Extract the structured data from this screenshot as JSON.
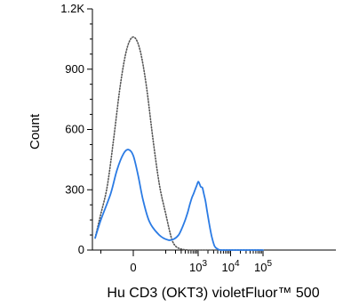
{
  "chart_data": {
    "type": "line",
    "xlabel": "Hu CD3 (OKT3) violetFluor™ 500",
    "ylabel": "Count",
    "ylim": [
      0,
      1200
    ],
    "y_ticks": [
      {
        "value": 0,
        "label": "0"
      },
      {
        "value": 300,
        "label": "300"
      },
      {
        "value": 600,
        "label": "600"
      },
      {
        "value": 900,
        "label": "900"
      },
      {
        "value": 1200,
        "label": "1.2K"
      }
    ],
    "x_scale": "biexponential",
    "x_ticks": [
      {
        "value": 0,
        "label": "0",
        "sup": ""
      },
      {
        "value": 1000,
        "label": "10",
        "sup": "3"
      },
      {
        "value": 10000,
        "label": "10",
        "sup": "4"
      },
      {
        "value": 100000,
        "label": "10",
        "sup": "5"
      }
    ],
    "grid": false,
    "series": [
      {
        "style": "dotted",
        "color": "#555555",
        "x": [
          -400,
          -300,
          -200,
          -150,
          -100,
          -80,
          -60,
          -40,
          -20,
          0,
          20,
          40,
          60,
          80,
          100,
          150,
          200,
          300,
          500,
          1000,
          10000,
          100000
        ],
        "y": [
          0,
          2,
          15,
          60,
          180,
          320,
          560,
          820,
          1000,
          1060,
          1000,
          820,
          560,
          330,
          180,
          60,
          20,
          5,
          0,
          0,
          0,
          0
        ]
      },
      {
        "style": "solid",
        "color": "#2b7be4",
        "x": [
          -400,
          -250,
          -150,
          -100,
          -70,
          -50,
          -30,
          -15,
          0,
          15,
          30,
          50,
          80,
          120,
          180,
          250,
          320,
          400,
          480,
          560,
          640,
          720,
          800,
          900,
          1000,
          1100,
          1200,
          1350,
          1500,
          1700,
          1900,
          2200,
          2600,
          3200,
          4000,
          5000,
          10000,
          100000
        ],
        "y": [
          0,
          10,
          60,
          150,
          280,
          400,
          480,
          500,
          470,
          370,
          250,
          140,
          75,
          50,
          55,
          75,
          110,
          150,
          190,
          230,
          260,
          280,
          300,
          320,
          340,
          330,
          315,
          310,
          280,
          240,
          190,
          130,
          70,
          20,
          5,
          0,
          0,
          0
        ]
      }
    ]
  }
}
